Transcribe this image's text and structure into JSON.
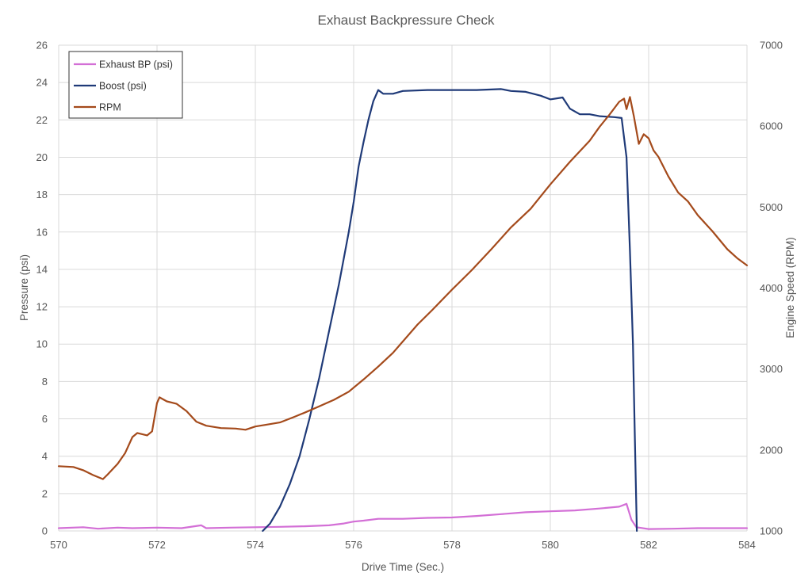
{
  "chart_data": {
    "type": "line",
    "title": "Exhaust Backpressure Check",
    "xlabel": "Drive Time (Sec.)",
    "ylabel": "Pressure (psi)",
    "y2label": "Engine Speed (RPM)",
    "xlim": [
      570,
      584
    ],
    "ylim": [
      0,
      26
    ],
    "y2lim": [
      1000,
      7000
    ],
    "x_ticks": [
      570,
      572,
      574,
      576,
      578,
      580,
      582,
      584
    ],
    "y_ticks": [
      0,
      2,
      4,
      6,
      8,
      10,
      12,
      14,
      16,
      18,
      20,
      22,
      24,
      26
    ],
    "y2_ticks": [
      1000,
      2000,
      3000,
      4000,
      5000,
      6000,
      7000
    ],
    "grid": true,
    "legend_position": "top-left",
    "series": [
      {
        "name": "Exhaust BP (psi)",
        "axis": "left",
        "color": "#d36fd6",
        "points": [
          [
            570.0,
            0.15
          ],
          [
            570.5,
            0.2
          ],
          [
            570.8,
            0.12
          ],
          [
            571.2,
            0.18
          ],
          [
            571.5,
            0.15
          ],
          [
            572.0,
            0.18
          ],
          [
            572.5,
            0.15
          ],
          [
            572.9,
            0.3
          ],
          [
            573.0,
            0.15
          ],
          [
            573.5,
            0.18
          ],
          [
            574.0,
            0.2
          ],
          [
            574.5,
            0.22
          ],
          [
            575.0,
            0.25
          ],
          [
            575.5,
            0.3
          ],
          [
            575.8,
            0.4
          ],
          [
            576.0,
            0.5
          ],
          [
            576.2,
            0.55
          ],
          [
            576.5,
            0.65
          ],
          [
            577.0,
            0.65
          ],
          [
            577.5,
            0.7
          ],
          [
            578.0,
            0.72
          ],
          [
            578.5,
            0.8
          ],
          [
            579.0,
            0.9
          ],
          [
            579.5,
            1.0
          ],
          [
            580.0,
            1.05
          ],
          [
            580.5,
            1.1
          ],
          [
            581.0,
            1.2
          ],
          [
            581.4,
            1.3
          ],
          [
            581.55,
            1.45
          ],
          [
            581.65,
            0.6
          ],
          [
            581.75,
            0.2
          ],
          [
            582.0,
            0.1
          ],
          [
            582.5,
            0.12
          ],
          [
            583.0,
            0.15
          ],
          [
            583.5,
            0.15
          ],
          [
            584.0,
            0.15
          ]
        ]
      },
      {
        "name": "Boost (psi)",
        "axis": "left",
        "color": "#1f3a78",
        "points": [
          [
            574.15,
            0.0
          ],
          [
            574.3,
            0.4
          ],
          [
            574.5,
            1.3
          ],
          [
            574.7,
            2.5
          ],
          [
            574.9,
            4.0
          ],
          [
            575.1,
            6.0
          ],
          [
            575.3,
            8.2
          ],
          [
            575.5,
            10.7
          ],
          [
            575.7,
            13.2
          ],
          [
            575.9,
            16.0
          ],
          [
            576.0,
            17.6
          ],
          [
            576.1,
            19.5
          ],
          [
            576.2,
            20.8
          ],
          [
            576.3,
            22.0
          ],
          [
            576.4,
            23.0
          ],
          [
            576.5,
            23.6
          ],
          [
            576.6,
            23.4
          ],
          [
            576.8,
            23.4
          ],
          [
            577.0,
            23.55
          ],
          [
            577.5,
            23.6
          ],
          [
            578.0,
            23.6
          ],
          [
            578.5,
            23.6
          ],
          [
            579.0,
            23.65
          ],
          [
            579.2,
            23.55
          ],
          [
            579.5,
            23.5
          ],
          [
            579.8,
            23.3
          ],
          [
            580.0,
            23.1
          ],
          [
            580.25,
            23.2
          ],
          [
            580.4,
            22.6
          ],
          [
            580.6,
            22.3
          ],
          [
            580.8,
            22.3
          ],
          [
            581.0,
            22.2
          ],
          [
            581.3,
            22.15
          ],
          [
            581.45,
            22.1
          ],
          [
            581.55,
            20.0
          ],
          [
            581.62,
            15.0
          ],
          [
            581.68,
            10.0
          ],
          [
            581.72,
            5.0
          ],
          [
            581.76,
            0.0
          ]
        ]
      },
      {
        "name": "RPM",
        "axis": "right",
        "color": "#a44a1b",
        "points": [
          [
            570.0,
            1800
          ],
          [
            570.3,
            1790
          ],
          [
            570.5,
            1750
          ],
          [
            570.7,
            1690
          ],
          [
            570.9,
            1640
          ],
          [
            571.0,
            1700
          ],
          [
            571.2,
            1830
          ],
          [
            571.35,
            1960
          ],
          [
            571.5,
            2160
          ],
          [
            571.6,
            2210
          ],
          [
            571.8,
            2180
          ],
          [
            571.9,
            2230
          ],
          [
            572.0,
            2580
          ],
          [
            572.05,
            2650
          ],
          [
            572.2,
            2600
          ],
          [
            572.4,
            2570
          ],
          [
            572.6,
            2480
          ],
          [
            572.8,
            2350
          ],
          [
            573.0,
            2300
          ],
          [
            573.3,
            2270
          ],
          [
            573.6,
            2265
          ],
          [
            573.8,
            2250
          ],
          [
            574.0,
            2290
          ],
          [
            574.2,
            2310
          ],
          [
            574.5,
            2340
          ],
          [
            574.8,
            2410
          ],
          [
            575.0,
            2460
          ],
          [
            575.3,
            2540
          ],
          [
            575.6,
            2620
          ],
          [
            575.9,
            2720
          ],
          [
            576.2,
            2870
          ],
          [
            576.5,
            3030
          ],
          [
            576.8,
            3200
          ],
          [
            577.0,
            3340
          ],
          [
            577.3,
            3550
          ],
          [
            577.6,
            3730
          ],
          [
            578.0,
            3980
          ],
          [
            578.4,
            4220
          ],
          [
            578.8,
            4480
          ],
          [
            579.2,
            4750
          ],
          [
            579.6,
            4980
          ],
          [
            580.0,
            5280
          ],
          [
            580.4,
            5560
          ],
          [
            580.8,
            5820
          ],
          [
            581.0,
            5990
          ],
          [
            581.2,
            6140
          ],
          [
            581.4,
            6300
          ],
          [
            581.5,
            6340
          ],
          [
            581.55,
            6210
          ],
          [
            581.62,
            6360
          ],
          [
            581.7,
            6120
          ],
          [
            581.8,
            5780
          ],
          [
            581.9,
            5900
          ],
          [
            582.0,
            5850
          ],
          [
            582.1,
            5700
          ],
          [
            582.2,
            5620
          ],
          [
            582.4,
            5380
          ],
          [
            582.6,
            5180
          ],
          [
            582.8,
            5070
          ],
          [
            583.0,
            4900
          ],
          [
            583.3,
            4700
          ],
          [
            583.6,
            4480
          ],
          [
            583.8,
            4370
          ],
          [
            584.0,
            4280
          ]
        ]
      }
    ]
  }
}
